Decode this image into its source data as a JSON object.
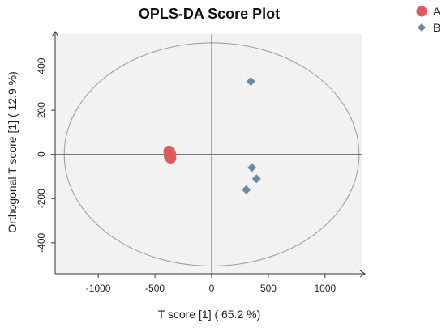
{
  "chart_data": {
    "type": "scatter",
    "title": "OPLS-DA Score Plot",
    "xlabel": "T score [1] ( 65.2 %)",
    "ylabel": "Orthogonal T score [1] ( 12.9 %)",
    "xlim": [
      -1380,
      1330
    ],
    "ylim": [
      -540,
      545
    ],
    "xticks": [
      -1000,
      -500,
      0,
      500,
      1000
    ],
    "yticks": [
      -400,
      -200,
      0,
      200,
      400
    ],
    "grid": false,
    "plot_background": "#f2f2f2",
    "legend_position": "top-right outside",
    "ellipse": {
      "cx": 0,
      "cy": 0,
      "rx": 1300,
      "ry": 505,
      "color": "#999999"
    },
    "series": [
      {
        "name": "A",
        "marker": "circle",
        "color": "#e05a5a",
        "points": [
          {
            "x": -375,
            "y": 14
          },
          {
            "x": -365,
            "y": 4
          },
          {
            "x": -372,
            "y": -6
          },
          {
            "x": -362,
            "y": -16
          }
        ]
      },
      {
        "name": "B",
        "marker": "diamond",
        "color": "#6a8aa8",
        "points": [
          {
            "x": 345,
            "y": 330
          },
          {
            "x": 355,
            "y": -60
          },
          {
            "x": 395,
            "y": -110
          },
          {
            "x": 305,
            "y": -160
          }
        ]
      }
    ]
  }
}
